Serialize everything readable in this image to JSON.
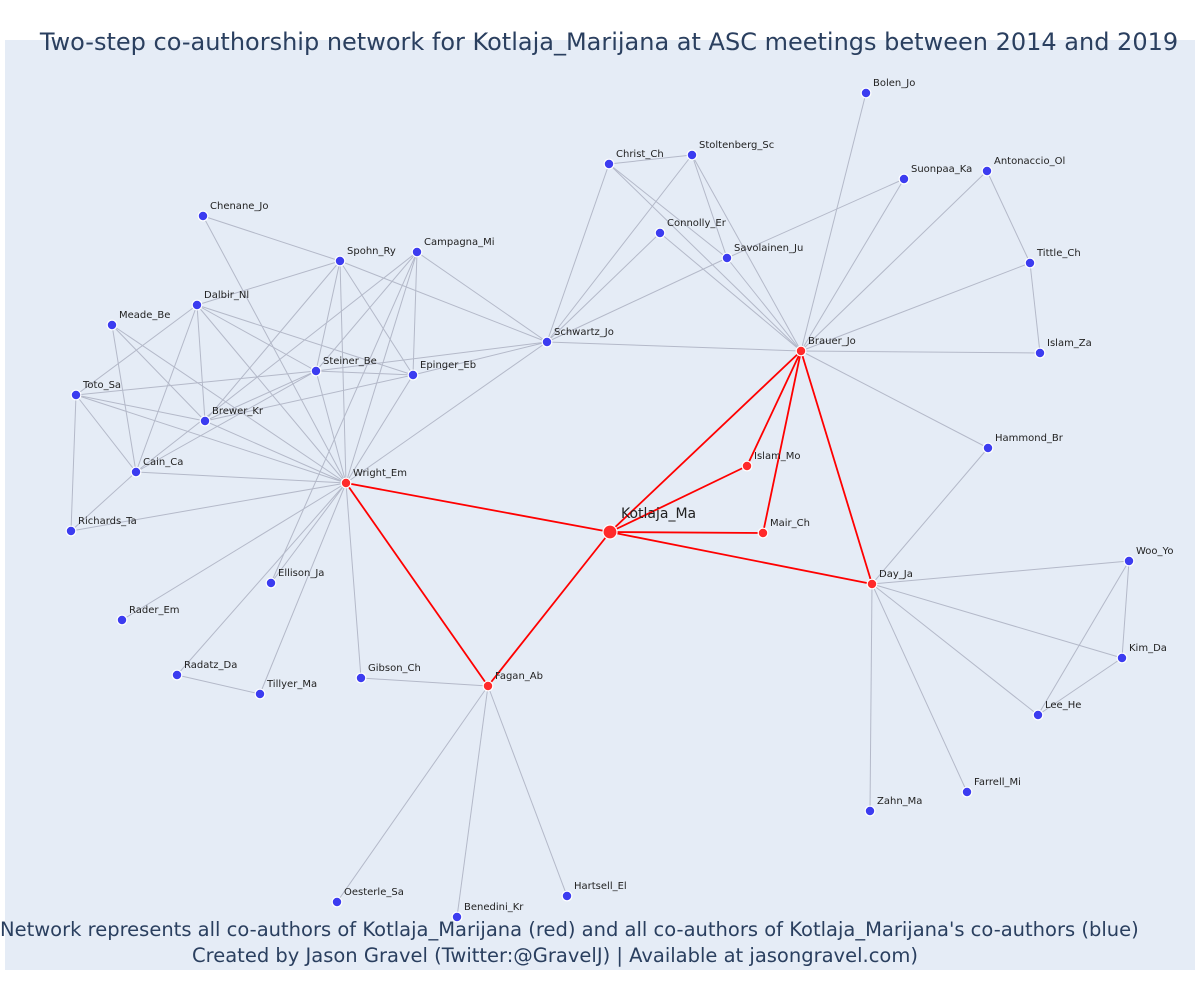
{
  "title": "Two-step co-authorship network for Kotlaja_Marijana at ASC meetings between 2014 and 2019",
  "caption_line1": "Network represents all co-authors of Kotlaja_Marijana (red) and all co-authors of Kotlaja_Marijana's co-authors (blue)",
  "caption_line2": "Created by Jason Gravel (Twitter:@GravelJ) | Available at jasongravel.com)",
  "colors": {
    "background": "#e5ecf6",
    "coauthor": "#ff2a2a",
    "second_step": "#3c3cf0",
    "red_edge": "#ff0000",
    "grey_edge": "#b4b9c9",
    "text": "#2a3f5f"
  },
  "nodes": [
    {
      "id": "Kotlaja_Ma",
      "type": "focal"
    },
    {
      "id": "Wright_Em",
      "type": "coauthor"
    },
    {
      "id": "Brauer_Jo",
      "type": "coauthor"
    },
    {
      "id": "Islam_Mo",
      "type": "coauthor"
    },
    {
      "id": "Mair_Ch",
      "type": "coauthor"
    },
    {
      "id": "Day_Ja",
      "type": "coauthor"
    },
    {
      "id": "Fagan_Ab",
      "type": "coauthor"
    },
    {
      "id": "Bolen_Jo",
      "type": "second"
    },
    {
      "id": "Christ_Ch",
      "type": "second"
    },
    {
      "id": "Stoltenberg_Sc",
      "type": "second"
    },
    {
      "id": "Suonpaa_Ka",
      "type": "second"
    },
    {
      "id": "Antonaccio_Ol",
      "type": "second"
    },
    {
      "id": "Connolly_Er",
      "type": "second"
    },
    {
      "id": "Savolainen_Ju",
      "type": "second"
    },
    {
      "id": "Tittle_Ch",
      "type": "second"
    },
    {
      "id": "Islam_Za",
      "type": "second"
    },
    {
      "id": "Schwartz_Jo",
      "type": "second"
    },
    {
      "id": "Hammond_Br",
      "type": "second"
    },
    {
      "id": "Chenane_Jo",
      "type": "second"
    },
    {
      "id": "Spohn_Ry",
      "type": "second"
    },
    {
      "id": "Campagna_Mi",
      "type": "second"
    },
    {
      "id": "Dalbir_Nl",
      "type": "second"
    },
    {
      "id": "Meade_Be",
      "type": "second"
    },
    {
      "id": "Steiner_Be",
      "type": "second"
    },
    {
      "id": "Epinger_Eb",
      "type": "second"
    },
    {
      "id": "Toto_Sa",
      "type": "second"
    },
    {
      "id": "Brewer_Kr",
      "type": "second"
    },
    {
      "id": "Cain_Ca",
      "type": "second"
    },
    {
      "id": "Richards_Ta",
      "type": "second"
    },
    {
      "id": "Ellison_Ja",
      "type": "second"
    },
    {
      "id": "Rader_Em",
      "type": "second"
    },
    {
      "id": "Radatz_Da",
      "type": "second"
    },
    {
      "id": "Tillyer_Ma",
      "type": "second"
    },
    {
      "id": "Gibson_Ch",
      "type": "second"
    },
    {
      "id": "Oesterle_Sa",
      "type": "second"
    },
    {
      "id": "Benedini_Kr",
      "type": "second"
    },
    {
      "id": "Hartsell_El",
      "type": "second"
    },
    {
      "id": "Woo_Yo",
      "type": "second"
    },
    {
      "id": "Kim_Da",
      "type": "second"
    },
    {
      "id": "Lee_He",
      "type": "second"
    },
    {
      "id": "Farrell_Mi",
      "type": "second"
    },
    {
      "id": "Zahn_Ma",
      "type": "second"
    }
  ],
  "edges": [
    [
      "Kotlaja_Ma",
      "Wright_Em"
    ],
    [
      "Kotlaja_Ma",
      "Brauer_Jo"
    ],
    [
      "Kotlaja_Ma",
      "Islam_Mo"
    ],
    [
      "Kotlaja_Ma",
      "Mair_Ch"
    ],
    [
      "Kotlaja_Ma",
      "Day_Ja"
    ],
    [
      "Kotlaja_Ma",
      "Fagan_Ab"
    ],
    [
      "Brauer_Jo",
      "Islam_Mo"
    ],
    [
      "Brauer_Jo",
      "Mair_Ch"
    ],
    [
      "Brauer_Jo",
      "Day_Ja"
    ],
    [
      "Wright_Em",
      "Fagan_Ab"
    ],
    [
      "Brauer_Jo",
      "Bolen_Jo"
    ],
    [
      "Brauer_Jo",
      "Suonpaa_Ka"
    ],
    [
      "Brauer_Jo",
      "Antonaccio_Ol"
    ],
    [
      "Brauer_Jo",
      "Tittle_Ch"
    ],
    [
      "Brauer_Jo",
      "Islam_Za"
    ],
    [
      "Brauer_Jo",
      "Schwartz_Jo"
    ],
    [
      "Brauer_Jo",
      "Hammond_Br"
    ],
    [
      "Brauer_Jo",
      "Christ_Ch"
    ],
    [
      "Brauer_Jo",
      "Stoltenberg_Sc"
    ],
    [
      "Brauer_Jo",
      "Connolly_Er"
    ],
    [
      "Brauer_Jo",
      "Savolainen_Ju"
    ],
    [
      "Antonaccio_Ol",
      "Tittle_Ch"
    ],
    [
      "Tittle_Ch",
      "Islam_Za"
    ],
    [
      "Christ_Ch",
      "Stoltenberg_Sc"
    ],
    [
      "Christ_Ch",
      "Savolainen_Ju"
    ],
    [
      "Stoltenberg_Sc",
      "Savolainen_Ju"
    ],
    [
      "Christ_Ch",
      "Schwartz_Jo"
    ],
    [
      "Stoltenberg_Sc",
      "Schwartz_Jo"
    ],
    [
      "Connolly_Er",
      "Schwartz_Jo"
    ],
    [
      "Savolainen_Ju",
      "Schwartz_Jo"
    ],
    [
      "Suonpaa_Ka",
      "Savolainen_Ju"
    ],
    [
      "Schwartz_Jo",
      "Spohn_Ry"
    ],
    [
      "Schwartz_Jo",
      "Campagna_Mi"
    ],
    [
      "Schwartz_Jo",
      "Steiner_Be"
    ],
    [
      "Schwartz_Jo",
      "Epinger_Eb"
    ],
    [
      "Schwartz_Jo",
      "Wright_Em"
    ],
    [
      "Day_Ja",
      "Hammond_Br"
    ],
    [
      "Day_Ja",
      "Woo_Yo"
    ],
    [
      "Day_Ja",
      "Kim_Da"
    ],
    [
      "Day_Ja",
      "Lee_He"
    ],
    [
      "Day_Ja",
      "Farrell_Mi"
    ],
    [
      "Day_Ja",
      "Zahn_Ma"
    ],
    [
      "Woo_Yo",
      "Kim_Da"
    ],
    [
      "Woo_Yo",
      "Lee_He"
    ],
    [
      "Kim_Da",
      "Lee_He"
    ],
    [
      "Fagan_Ab",
      "Gibson_Ch"
    ],
    [
      "Fagan_Ab",
      "Oesterle_Sa"
    ],
    [
      "Fagan_Ab",
      "Benedini_Kr"
    ],
    [
      "Fagan_Ab",
      "Hartsell_El"
    ],
    [
      "Wright_Em",
      "Chenane_Jo"
    ],
    [
      "Wright_Em",
      "Spohn_Ry"
    ],
    [
      "Wright_Em",
      "Campagna_Mi"
    ],
    [
      "Wright_Em",
      "Dalbir_Nl"
    ],
    [
      "Wright_Em",
      "Meade_Be"
    ],
    [
      "Wright_Em",
      "Steiner_Be"
    ],
    [
      "Wright_Em",
      "Epinger_Eb"
    ],
    [
      "Wright_Em",
      "Toto_Sa"
    ],
    [
      "Wright_Em",
      "Brewer_Kr"
    ],
    [
      "Wright_Em",
      "Cain_Ca"
    ],
    [
      "Wright_Em",
      "Richards_Ta"
    ],
    [
      "Wright_Em",
      "Ellison_Ja"
    ],
    [
      "Wright_Em",
      "Rader_Em"
    ],
    [
      "Wright_Em",
      "Radatz_Da"
    ],
    [
      "Wright_Em",
      "Tillyer_Ma"
    ],
    [
      "Wright_Em",
      "Gibson_Ch"
    ],
    [
      "Chenane_Jo",
      "Spohn_Ry"
    ],
    [
      "Spohn_Ry",
      "Dalbir_Nl"
    ],
    [
      "Spohn_Ry",
      "Steiner_Be"
    ],
    [
      "Spohn_Ry",
      "Epinger_Eb"
    ],
    [
      "Spohn_Ry",
      "Brewer_Kr"
    ],
    [
      "Campagna_Mi",
      "Steiner_Be"
    ],
    [
      "Campagna_Mi",
      "Epinger_Eb"
    ],
    [
      "Campagna_Mi",
      "Ellison_Ja"
    ],
    [
      "Campagna_Mi",
      "Cain_Ca"
    ],
    [
      "Dalbir_Nl",
      "Steiner_Be"
    ],
    [
      "Dalbir_Nl",
      "Epinger_Eb"
    ],
    [
      "Dalbir_Nl",
      "Toto_Sa"
    ],
    [
      "Dalbir_Nl",
      "Brewer_Kr"
    ],
    [
      "Dalbir_Nl",
      "Cain_Ca"
    ],
    [
      "Meade_Be",
      "Cain_Ca"
    ],
    [
      "Meade_Be",
      "Brewer_Kr"
    ],
    [
      "Toto_Sa",
      "Steiner_Be"
    ],
    [
      "Toto_Sa",
      "Brewer_Kr"
    ],
    [
      "Toto_Sa",
      "Cain_Ca"
    ],
    [
      "Toto_Sa",
      "Richards_Ta"
    ],
    [
      "Steiner_Be",
      "Epinger_Eb"
    ],
    [
      "Steiner_Be",
      "Brewer_Kr"
    ],
    [
      "Steiner_Be",
      "Cain_Ca"
    ],
    [
      "Epinger_Eb",
      "Brewer_Kr"
    ],
    [
      "Cain_Ca",
      "Richards_Ta"
    ],
    [
      "Radatz_Da",
      "Tillyer_Ma"
    ]
  ]
}
